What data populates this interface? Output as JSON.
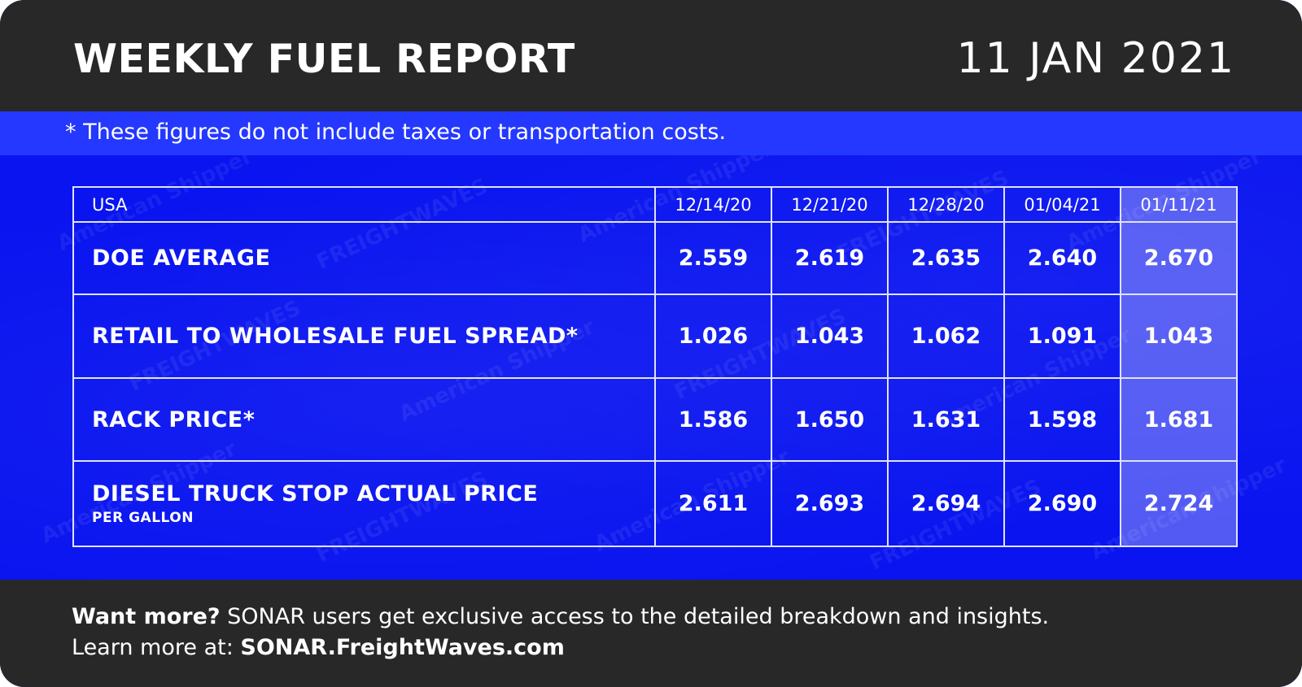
{
  "header": {
    "title": "WEEKLY FUEL REPORT",
    "date": "11 JAN 2021"
  },
  "note": "* These figures do not include taxes or transportation costs.",
  "watermarks": [
    "American Shipper",
    "FREIGHTWAVES"
  ],
  "colors": {
    "header_bg": "#282828",
    "body_blue": "#0914f0",
    "note_band": "#2438ff",
    "grid_line": "#dfe3ff",
    "text": "#ffffff"
  },
  "chart_data": {
    "type": "table",
    "corner_label": "USA",
    "columns": [
      "12/14/20",
      "12/21/20",
      "12/28/20",
      "01/04/21",
      "01/11/21"
    ],
    "highlighted_column": "01/11/21",
    "rows": [
      {
        "label": "DOE AVERAGE",
        "sublabel": "",
        "values": [
          "2.559",
          "2.619",
          "2.635",
          "2.640",
          "2.670"
        ]
      },
      {
        "label": "RETAIL TO WHOLESALE FUEL SPREAD*",
        "sublabel": "",
        "values": [
          "1.026",
          "1.043",
          "1.062",
          "1.091",
          "1.043"
        ]
      },
      {
        "label": "RACK PRICE*",
        "sublabel": "",
        "values": [
          "1.586",
          "1.650",
          "1.631",
          "1.598",
          "1.681"
        ]
      },
      {
        "label": "DIESEL TRUCK STOP ACTUAL PRICE",
        "sublabel": "PER GALLON",
        "values": [
          "2.611",
          "2.693",
          "2.694",
          "2.690",
          "2.724"
        ]
      }
    ]
  },
  "footer": {
    "line1_bold": "Want more?",
    "line1_rest": " SONAR users get exclusive access to the detailed breakdown and insights.",
    "line2_prefix": "Learn more at: ",
    "line2_link": "SONAR.FreightWaves.com"
  }
}
